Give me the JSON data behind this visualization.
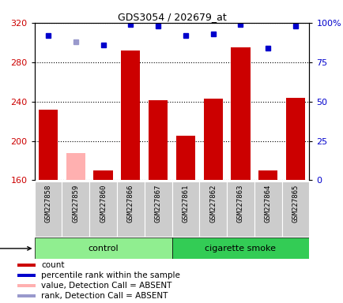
{
  "title": "GDS3054 / 202679_at",
  "samples": [
    "GSM227858",
    "GSM227859",
    "GSM227860",
    "GSM227866",
    "GSM227867",
    "GSM227861",
    "GSM227862",
    "GSM227863",
    "GSM227864",
    "GSM227865"
  ],
  "groups": [
    "control",
    "control",
    "control",
    "control",
    "control",
    "cigarette smoke",
    "cigarette smoke",
    "cigarette smoke",
    "cigarette smoke",
    "cigarette smoke"
  ],
  "bar_values": [
    232,
    188,
    170,
    292,
    241,
    205,
    243,
    295,
    170,
    244
  ],
  "bar_absent": [
    false,
    true,
    false,
    false,
    false,
    false,
    false,
    false,
    false,
    false
  ],
  "rank_values": [
    92,
    88,
    86,
    99,
    98,
    92,
    93,
    99,
    84,
    98
  ],
  "rank_absent": [
    false,
    true,
    false,
    false,
    false,
    false,
    false,
    false,
    false,
    false
  ],
  "ylim_left": [
    160,
    320
  ],
  "ylim_right": [
    0,
    100
  ],
  "yticks_left": [
    160,
    200,
    240,
    280,
    320
  ],
  "yticks_right": [
    0,
    25,
    50,
    75,
    100
  ],
  "ytick_labels_right": [
    "0",
    "25",
    "50",
    "75",
    "100%"
  ],
  "bar_color_normal": "#cc0000",
  "bar_color_absent": "#ffb0b0",
  "rank_color_normal": "#0000cc",
  "rank_color_absent": "#9999cc",
  "left_tick_color": "#cc0000",
  "right_tick_color": "#0000cc",
  "legend_items": [
    {
      "color": "#cc0000",
      "label": "count"
    },
    {
      "color": "#0000cc",
      "label": "percentile rank within the sample"
    },
    {
      "color": "#ffb0b0",
      "label": "value, Detection Call = ABSENT"
    },
    {
      "color": "#9999cc",
      "label": "rank, Detection Call = ABSENT"
    }
  ],
  "control_color": "#90ee90",
  "smoke_color": "#33cc55",
  "sample_bg_color": "#cccccc",
  "grid_linestyle": "dotted"
}
